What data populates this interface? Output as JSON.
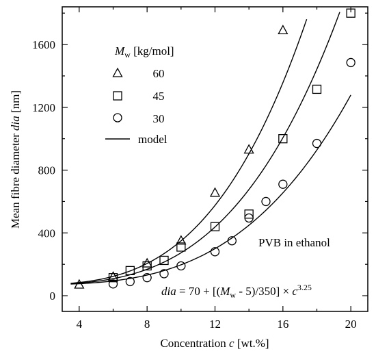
{
  "chart_data": {
    "type": "scatter",
    "xlabel": "Concentration c [wt.%]",
    "ylabel": "Mean fibre diameter dia [nm]",
    "xlim": [
      3,
      21
    ],
    "ylim": [
      -100,
      1840
    ],
    "x_ticks": [
      4,
      8,
      12,
      16,
      20
    ],
    "y_ticks": [
      0,
      400,
      800,
      1200,
      1600
    ],
    "grid": false,
    "legend_title": "Mw [kg/mol]",
    "legend_placement": "top-left",
    "series": [
      {
        "name": "60",
        "marker": "triangle",
        "points": [
          [
            4,
            70
          ],
          [
            6,
            120
          ],
          [
            8,
            205
          ],
          [
            10,
            350
          ],
          [
            12,
            655
          ],
          [
            14,
            930
          ],
          [
            16,
            1690
          ]
        ]
      },
      {
        "name": "45",
        "marker": "square",
        "points": [
          [
            6,
            115
          ],
          [
            7,
            160
          ],
          [
            8,
            190
          ],
          [
            9,
            225
          ],
          [
            10,
            310
          ],
          [
            12,
            440
          ],
          [
            14,
            520
          ],
          [
            16,
            1000
          ],
          [
            18,
            1315
          ],
          [
            20,
            1800
          ]
        ]
      },
      {
        "name": "30",
        "marker": "circle",
        "points": [
          [
            6,
            75
          ],
          [
            7,
            90
          ],
          [
            8,
            115
          ],
          [
            9,
            140
          ],
          [
            10,
            190
          ],
          [
            12,
            280
          ],
          [
            13,
            350
          ],
          [
            14,
            495
          ],
          [
            15,
            600
          ],
          [
            16,
            710
          ],
          [
            18,
            970
          ],
          [
            20,
            1485
          ]
        ]
      }
    ],
    "model": {
      "name": "model",
      "intercept": 70,
      "offset": 5,
      "divisor": 350,
      "exponent": 3.25,
      "curves": [
        {
          "mw": 60,
          "x_range": [
            3.5,
            17.4
          ]
        },
        {
          "mw": 45,
          "x_range": [
            3.5,
            19.35
          ]
        },
        {
          "mw": 30,
          "x_range": [
            3.5,
            20
          ]
        }
      ]
    },
    "annotations": [
      "PVB in ethanol",
      "dia = 70 + [(Mw - 5)/350] × c^3.25"
    ]
  },
  "labels": {
    "xlabel_main": "Concentration ",
    "xlabel_var": "c",
    "xlabel_unit": " [wt.%]",
    "ylabel_main": "Mean fibre diameter ",
    "ylabel_var": "dia",
    "ylabel_unit": " [nm]",
    "legend_title_M": "M",
    "legend_title_sub": "w",
    "legend_title_unit": " [kg/mol]",
    "legend_60": "60",
    "legend_45": "45",
    "legend_30": "30",
    "legend_model": "model",
    "annot_pvb": "PVB in ethanol",
    "eq_dia": "dia",
    "eq_part1": " = 70 + [(",
    "eq_M": "M",
    "eq_sub": "w",
    "eq_part2": " - 5)/350] × ",
    "eq_c": "c",
    "eq_exp": "3.25"
  }
}
